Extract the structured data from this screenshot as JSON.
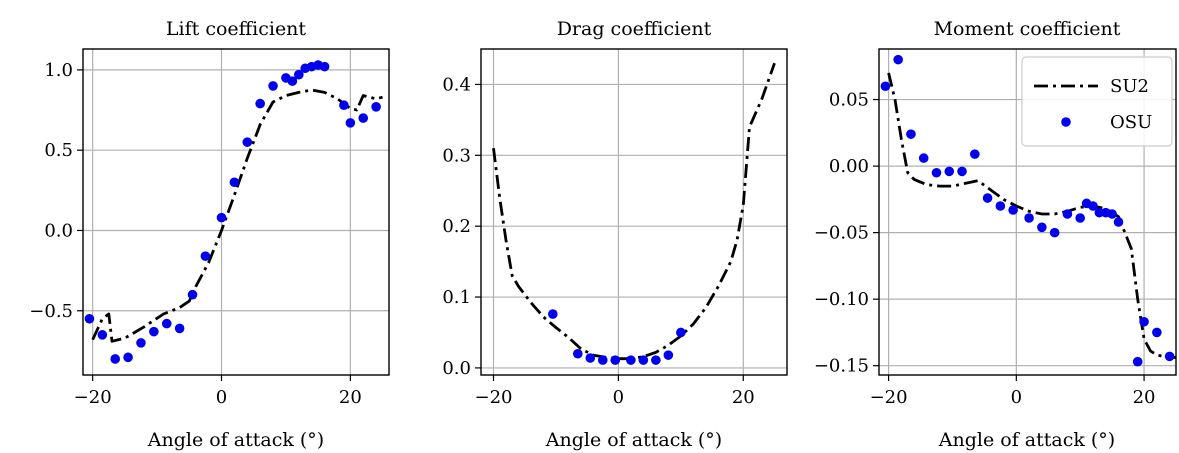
{
  "chart_data": [
    {
      "type": "line",
      "title": "Lift coefficient",
      "xlabel": "Angle of attack (°)",
      "ylabel": "",
      "xlim": [
        -21.5,
        26
      ],
      "ylim": [
        -0.9,
        1.13
      ],
      "xticks": [
        -20,
        0,
        20
      ],
      "xtick_labels": [
        "−20",
        "0",
        "20"
      ],
      "yticks": [
        -0.5,
        0,
        0.5,
        1
      ],
      "ytick_labels": [
        "−0.5",
        "0.0",
        "0.5",
        "1.0"
      ],
      "grid": true,
      "series": [
        {
          "name": "SU2",
          "style": "dash-dot",
          "color": "#000000",
          "x": [
            -20,
            -18.5,
            -17.5,
            -17,
            -15,
            -12,
            -9,
            -6.5,
            -5,
            -4,
            -2,
            0,
            2,
            4,
            6,
            8,
            10,
            12,
            14,
            16,
            18,
            20,
            21,
            22,
            24,
            25
          ],
          "y": [
            -0.68,
            -0.55,
            -0.52,
            -0.69,
            -0.67,
            -0.6,
            -0.52,
            -0.48,
            -0.44,
            -0.35,
            -0.2,
            0.0,
            0.22,
            0.45,
            0.66,
            0.8,
            0.84,
            0.86,
            0.875,
            0.86,
            0.82,
            0.76,
            0.75,
            0.84,
            0.82,
            0.83
          ]
        },
        {
          "name": "OSU",
          "style": "points",
          "color": "#0000ee",
          "x": [
            -20.5,
            -18.5,
            -16.5,
            -14.5,
            -12.5,
            -10.5,
            -8.5,
            -6.5,
            -4.5,
            -2.5,
            0,
            2,
            4,
            6,
            8,
            10,
            11,
            12,
            13,
            14,
            15,
            16,
            19,
            20,
            22,
            24
          ],
          "y": [
            -0.55,
            -0.65,
            -0.8,
            -0.79,
            -0.7,
            -0.63,
            -0.58,
            -0.61,
            -0.4,
            -0.16,
            0.08,
            0.3,
            0.55,
            0.79,
            0.9,
            0.95,
            0.93,
            0.97,
            1.01,
            1.02,
            1.03,
            1.02,
            0.78,
            0.67,
            0.7,
            0.77
          ]
        }
      ]
    },
    {
      "type": "line",
      "title": "Drag coefficient",
      "xlabel": "Angle of attack (°)",
      "ylabel": "",
      "xlim": [
        -22,
        27
      ],
      "ylim": [
        -0.01,
        0.45
      ],
      "xticks": [
        -20,
        0,
        20
      ],
      "xtick_labels": [
        "−20",
        "0",
        "20"
      ],
      "yticks": [
        0,
        0.1,
        0.2,
        0.3,
        0.4
      ],
      "ytick_labels": [
        "0.0",
        "0.1",
        "0.2",
        "0.3",
        "0.4"
      ],
      "grid": true,
      "series": [
        {
          "name": "SU2",
          "style": "dash-dot",
          "color": "#000000",
          "x": [
            -20,
            -19,
            -18,
            -17,
            -16,
            -14,
            -12,
            -10,
            -8,
            -6,
            -4,
            -2,
            0,
            2,
            4,
            6,
            8,
            10,
            12,
            14,
            16,
            18,
            19,
            20,
            21,
            23,
            25
          ],
          "y": [
            0.31,
            0.24,
            0.18,
            0.13,
            0.115,
            0.092,
            0.072,
            0.057,
            0.043,
            0.027,
            0.018,
            0.015,
            0.013,
            0.013,
            0.016,
            0.022,
            0.032,
            0.045,
            0.062,
            0.085,
            0.115,
            0.15,
            0.18,
            0.23,
            0.34,
            0.38,
            0.43
          ]
        },
        {
          "name": "OSU",
          "style": "points",
          "color": "#0000ee",
          "x": [
            -10.5,
            -6.5,
            -4.5,
            -2.5,
            -0.5,
            2,
            4,
            6,
            8,
            10
          ],
          "y": [
            0.076,
            0.02,
            0.014,
            0.011,
            0.011,
            0.011,
            0.011,
            0.011,
            0.018,
            0.05
          ]
        }
      ]
    },
    {
      "type": "line",
      "title": "Moment coefficient",
      "xlabel": "Angle of attack (°)",
      "ylabel": "",
      "xlim": [
        -21.5,
        25
      ],
      "ylim": [
        -0.157,
        0.088
      ],
      "xticks": [
        -20,
        0,
        20
      ],
      "xtick_labels": [
        "−20",
        "0",
        "20"
      ],
      "yticks": [
        0.05,
        0,
        -0.05,
        -0.1,
        -0.15
      ],
      "ytick_labels": [
        "0.05",
        "0.00",
        "−0.05",
        "−0.10",
        "−0.15"
      ],
      "grid": true,
      "legend": {
        "position": "top-right",
        "entries": [
          "SU2",
          "OSU"
        ]
      },
      "series": [
        {
          "name": "SU2",
          "style": "dash-dot",
          "color": "#000000",
          "x": [
            -20,
            -19,
            -18,
            -17,
            -16,
            -14,
            -12,
            -10,
            -8,
            -6,
            -4,
            -2,
            0,
            2,
            4,
            6,
            8,
            10,
            12,
            14,
            16,
            17,
            18,
            19,
            20,
            21,
            22,
            23,
            24,
            25
          ],
          "y": [
            0.07,
            0.05,
            0.02,
            -0.005,
            -0.01,
            -0.014,
            -0.015,
            -0.015,
            -0.013,
            -0.011,
            -0.018,
            -0.025,
            -0.03,
            -0.034,
            -0.036,
            -0.036,
            -0.034,
            -0.031,
            -0.03,
            -0.032,
            -0.038,
            -0.05,
            -0.062,
            -0.1,
            -0.13,
            -0.139,
            -0.142,
            -0.143,
            -0.143,
            -0.144
          ]
        },
        {
          "name": "OSU",
          "style": "points",
          "color": "#0000ee",
          "x": [
            -20.5,
            -18.5,
            -16.5,
            -14.5,
            -12.5,
            -10.5,
            -8.5,
            -6.5,
            -4.5,
            -2.5,
            -0.5,
            2,
            4,
            6,
            8,
            10,
            11,
            12,
            13,
            14,
            15,
            16,
            19,
            20,
            22,
            24
          ],
          "y": [
            0.06,
            0.08,
            0.024,
            0.006,
            -0.005,
            -0.004,
            -0.004,
            0.009,
            -0.024,
            -0.03,
            -0.033,
            -0.039,
            -0.046,
            -0.05,
            -0.036,
            -0.039,
            -0.028,
            -0.03,
            -0.035,
            -0.035,
            -0.036,
            -0.042,
            -0.147,
            -0.117,
            -0.125,
            -0.143
          ]
        }
      ]
    }
  ]
}
